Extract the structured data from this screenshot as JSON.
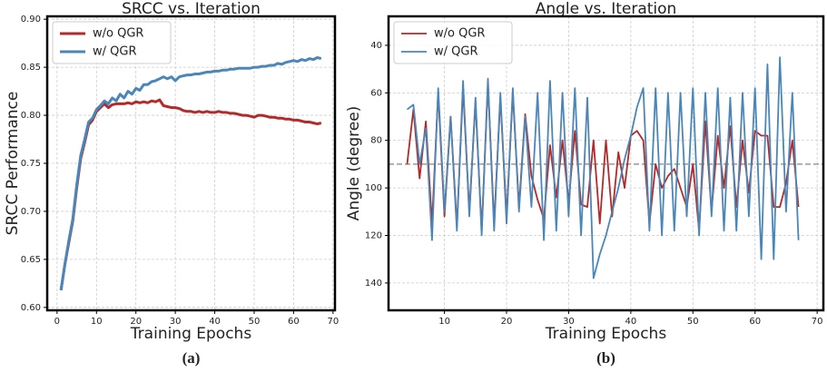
{
  "chart_data": [
    {
      "type": "line",
      "title": "SRCC vs. Iteration",
      "xlabel": "Training Epochs",
      "ylabel": "SRCC Performance",
      "caption": "(a)",
      "x": [
        1,
        2,
        3,
        4,
        5,
        6,
        7,
        8,
        9,
        10,
        11,
        12,
        13,
        14,
        15,
        16,
        17,
        18,
        19,
        20,
        21,
        22,
        23,
        24,
        25,
        26,
        27,
        28,
        29,
        30,
        31,
        32,
        33,
        34,
        35,
        36,
        37,
        38,
        39,
        40,
        41,
        42,
        43,
        44,
        45,
        46,
        47,
        48,
        49,
        50,
        51,
        52,
        53,
        54,
        55,
        56,
        57,
        58,
        59,
        60,
        61,
        62,
        63,
        64,
        65,
        66,
        67
      ],
      "series": [
        {
          "name": "w/o QGR",
          "color": "#b22a2a",
          "values": [
            0.618,
            0.645,
            0.668,
            0.69,
            0.725,
            0.755,
            0.772,
            0.79,
            0.795,
            0.804,
            0.808,
            0.812,
            0.808,
            0.811,
            0.812,
            0.812,
            0.812,
            0.813,
            0.812,
            0.814,
            0.813,
            0.814,
            0.813,
            0.815,
            0.814,
            0.816,
            0.81,
            0.809,
            0.808,
            0.808,
            0.807,
            0.805,
            0.804,
            0.804,
            0.803,
            0.804,
            0.803,
            0.804,
            0.803,
            0.803,
            0.804,
            0.803,
            0.803,
            0.802,
            0.802,
            0.801,
            0.8,
            0.8,
            0.799,
            0.798,
            0.8,
            0.8,
            0.799,
            0.798,
            0.798,
            0.797,
            0.797,
            0.796,
            0.796,
            0.795,
            0.795,
            0.794,
            0.793,
            0.793,
            0.792,
            0.791,
            0.792
          ]
        },
        {
          "name": "w/ QGR",
          "color": "#4a86b8",
          "values": [
            0.618,
            0.645,
            0.67,
            0.692,
            0.728,
            0.758,
            0.775,
            0.793,
            0.797,
            0.806,
            0.81,
            0.815,
            0.812,
            0.818,
            0.815,
            0.822,
            0.818,
            0.825,
            0.822,
            0.828,
            0.826,
            0.832,
            0.832,
            0.835,
            0.836,
            0.838,
            0.84,
            0.838,
            0.84,
            0.836,
            0.84,
            0.841,
            0.842,
            0.842,
            0.843,
            0.843,
            0.844,
            0.845,
            0.845,
            0.846,
            0.846,
            0.847,
            0.847,
            0.848,
            0.848,
            0.849,
            0.849,
            0.849,
            0.849,
            0.85,
            0.85,
            0.851,
            0.851,
            0.852,
            0.852,
            0.854,
            0.853,
            0.855,
            0.856,
            0.857,
            0.856,
            0.858,
            0.857,
            0.859,
            0.858,
            0.86,
            0.859
          ]
        }
      ],
      "xlim": [
        -2.5,
        70.5
      ],
      "xticks": [
        0,
        10,
        20,
        30,
        40,
        50,
        60,
        70
      ],
      "ylim": [
        0.597,
        0.903
      ],
      "yticks": [
        {
          "value": 0.6,
          "label": "0.60"
        },
        {
          "value": 0.65,
          "label": "0.65"
        },
        {
          "value": 0.7,
          "label": "0.70"
        },
        {
          "value": 0.75,
          "label": "0.75"
        },
        {
          "value": 0.8,
          "label": "0.80"
        },
        {
          "value": 0.85,
          "label": "0.85"
        },
        {
          "value": 0.9,
          "label": "0.90"
        }
      ],
      "grid": true,
      "legend": "upper left",
      "line_width": 3
    },
    {
      "type": "line",
      "title": "Angle vs. Iteration",
      "xlabel": "Training Epochs",
      "ylabel": "Angle (degree)",
      "caption": "(b)",
      "x": [
        4,
        5,
        6,
        7,
        8,
        9,
        10,
        11,
        12,
        13,
        14,
        15,
        16,
        17,
        18,
        19,
        20,
        21,
        22,
        23,
        24,
        25,
        26,
        27,
        28,
        29,
        30,
        31,
        32,
        33,
        34,
        35,
        36,
        37,
        38,
        39,
        40,
        41,
        42,
        43,
        44,
        45,
        46,
        47,
        48,
        49,
        50,
        51,
        52,
        53,
        54,
        55,
        56,
        57,
        58,
        59,
        60,
        61,
        62,
        63,
        64,
        65,
        66,
        67
      ],
      "series": [
        {
          "name": "w/o QGR",
          "color": "#b22a2a",
          "values": [
            90,
            67,
            96,
            72,
            115,
            60,
            112,
            70,
            116,
            58,
            110,
            64,
            118,
            56,
            115,
            62,
            112,
            60,
            108,
            69,
            95,
            105,
            113,
            82,
            104,
            80,
            106,
            76,
            107,
            108,
            80,
            115,
            80,
            112,
            85,
            100,
            78,
            76,
            80,
            115,
            90,
            100,
            95,
            92,
            100,
            108,
            90,
            118,
            72,
            110,
            78,
            100,
            74,
            108,
            80,
            102,
            76,
            78,
            78,
            108,
            108,
            98,
            80,
            108
          ]
        },
        {
          "name": "w/ QGR",
          "color": "#4a86b8",
          "values": [
            67,
            65,
            90,
            75,
            122,
            58,
            110,
            70,
            118,
            55,
            112,
            62,
            120,
            54,
            118,
            60,
            115,
            58,
            110,
            70,
            108,
            60,
            122,
            55,
            118,
            60,
            112,
            58,
            120,
            62,
            138,
            128,
            120,
            110,
            100,
            88,
            78,
            66,
            58,
            118,
            58,
            120,
            60,
            118,
            60,
            112,
            58,
            120,
            60,
            112,
            58,
            118,
            62,
            118,
            60,
            112,
            58,
            130,
            48,
            130,
            45,
            110,
            60,
            122
          ]
        }
      ],
      "xlim": [
        1,
        71
      ],
      "xticks": [
        10,
        20,
        30,
        40,
        50,
        60,
        70
      ],
      "ylim": [
        151.5,
        27.8
      ],
      "yticks": [
        40,
        60,
        80,
        100,
        120,
        140
      ],
      "hline": 90,
      "grid": true,
      "legend": "upper left",
      "line_width": 1.8
    }
  ]
}
